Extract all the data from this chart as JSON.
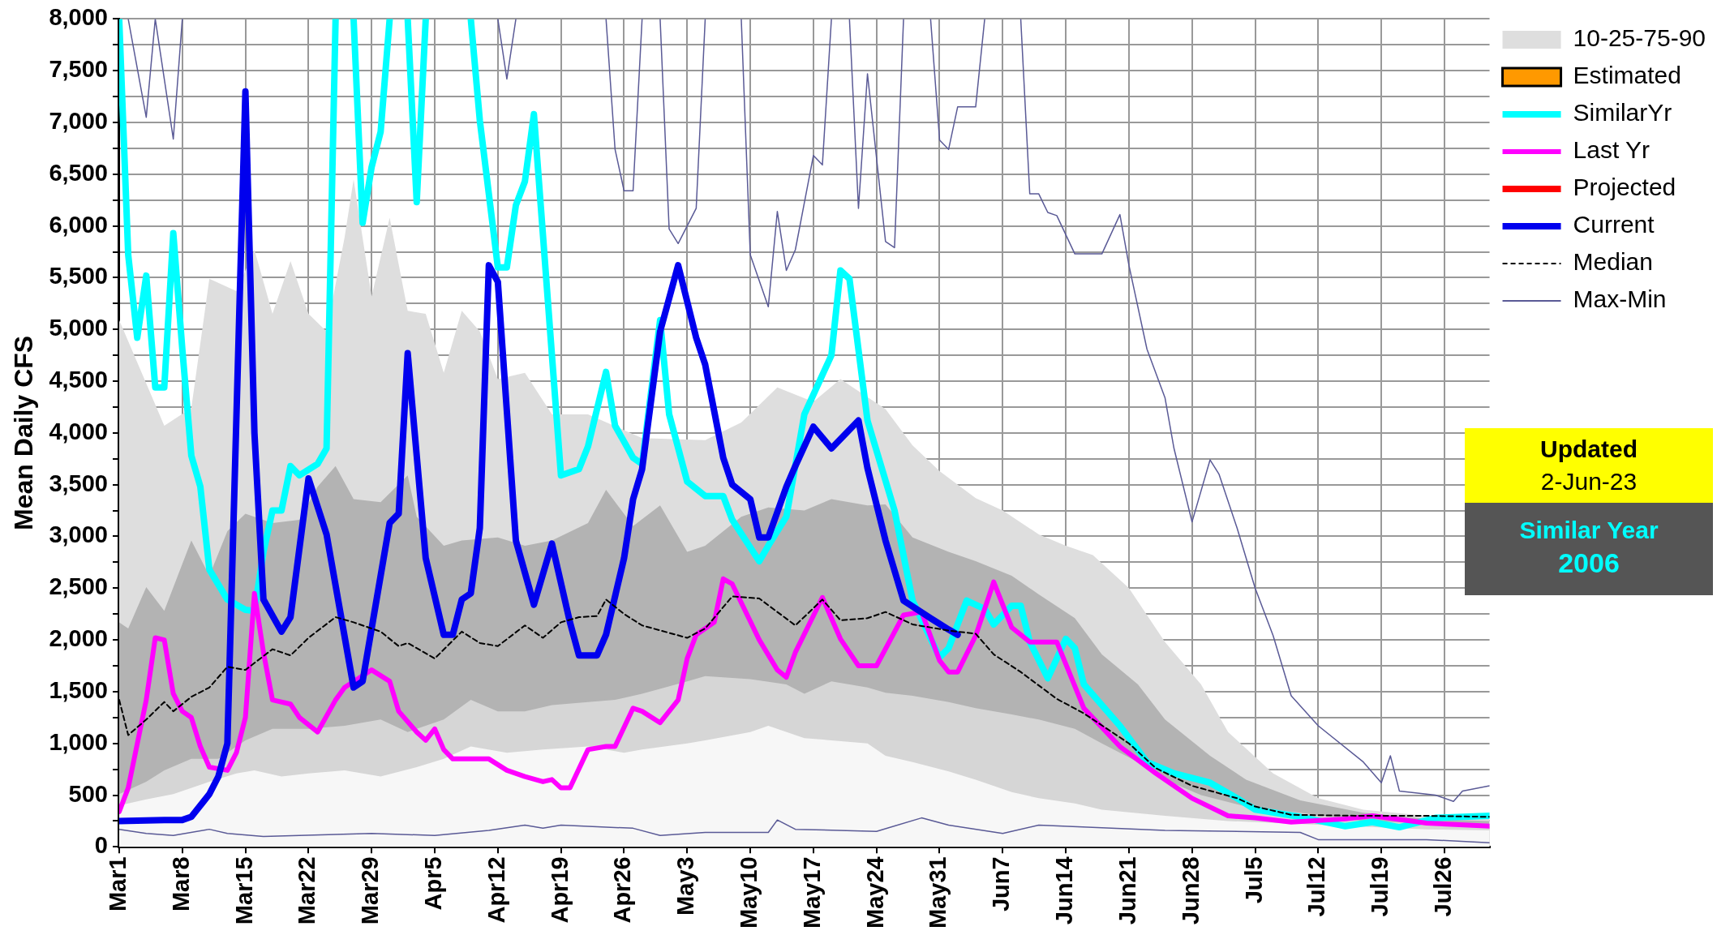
{
  "chart_data": {
    "type": "line",
    "ylabel": "Mean Daily CFS",
    "xlim": [
      "--03-01",
      "--07-31"
    ],
    "ylim": [
      0,
      8000
    ],
    "xticks": [
      {
        "value": "--03-01",
        "label": "Mar1"
      },
      {
        "value": "--03-08",
        "label": "Mar8"
      },
      {
        "value": "--03-15",
        "label": "Mar15"
      },
      {
        "value": "--03-22",
        "label": "Mar22"
      },
      {
        "value": "--03-29",
        "label": "Mar29"
      },
      {
        "value": "--04-05",
        "label": "Apr5"
      },
      {
        "value": "--04-12",
        "label": "Apr12"
      },
      {
        "value": "--04-19",
        "label": "Apr19"
      },
      {
        "value": "--04-26",
        "label": "Apr26"
      },
      {
        "value": "--05-03",
        "label": "May3"
      },
      {
        "value": "--05-10",
        "label": "May10"
      },
      {
        "value": "--05-17",
        "label": "May17"
      },
      {
        "value": "--05-24",
        "label": "May24"
      },
      {
        "value": "--05-31",
        "label": "May31"
      },
      {
        "value": "--06-07",
        "label": "Jun7"
      },
      {
        "value": "--06-14",
        "label": "Jun14"
      },
      {
        "value": "--06-21",
        "label": "Jun21"
      },
      {
        "value": "--06-28",
        "label": "Jun28"
      },
      {
        "value": "--07-05",
        "label": "Jul5"
      },
      {
        "value": "--07-12",
        "label": "Jul12"
      },
      {
        "value": "--07-19",
        "label": "Jul19"
      },
      {
        "value": "--07-26",
        "label": "Jul26"
      }
    ],
    "yticks": [
      0,
      {
        "value": 250,
        "label": null
      },
      500,
      {
        "value": 750,
        "label": null
      },
      {
        "value": 1000,
        "label": "1,000"
      },
      {
        "value": 1250,
        "label": null
      },
      {
        "value": 1500,
        "label": "1,500"
      },
      {
        "value": 1750,
        "label": null
      },
      {
        "value": 2000,
        "label": "2,000"
      },
      {
        "value": 2250,
        "label": null
      },
      {
        "value": 2500,
        "label": "2,500"
      },
      {
        "value": 2750,
        "label": null
      },
      {
        "value": 3000,
        "label": "3,000"
      },
      {
        "value": 3250,
        "label": null
      },
      {
        "value": 3500,
        "label": "3,500"
      },
      {
        "value": 3750,
        "label": null
      },
      {
        "value": 4000,
        "label": "4,000"
      },
      {
        "value": 4250,
        "label": null
      },
      {
        "value": 4500,
        "label": "4,500"
      },
      {
        "value": 4750,
        "label": null
      },
      {
        "value": 5000,
        "label": "5,000"
      },
      {
        "value": 5250,
        "label": null
      },
      {
        "value": 5500,
        "label": "5,500"
      },
      {
        "value": 5750,
        "label": null
      },
      {
        "value": 6000,
        "label": "6,000"
      },
      {
        "value": 6250,
        "label": null
      },
      {
        "value": 6500,
        "label": "6,500"
      },
      {
        "value": 6750,
        "label": null
      },
      {
        "value": 7000,
        "label": "7,000"
      },
      {
        "value": 7250,
        "label": null
      },
      {
        "value": 7500,
        "label": "7,500"
      },
      {
        "value": 7750,
        "label": null
      },
      {
        "value": 8000,
        "label": "8,000"
      }
    ],
    "grid": true,
    "legend": "right",
    "annotations": [
      "Updated\n2-Jun-23",
      "Similar Year\n2006"
    ],
    "series": [
      {
        "name": "10-25-75-90",
        "type": "area",
        "color": "#dedede",
        "x": [
          "--03-01",
          "--03-06",
          "--03-09",
          "--03-11",
          "--03-14",
          "--03-16",
          "--03-18",
          "--03-20",
          "--03-22",
          "--03-24",
          "--03-26",
          "--03-27",
          "--03-29",
          "--03-31",
          "--04-02",
          "--04-04",
          "--04-06",
          "--04-08",
          "--04-10",
          "--04-12",
          "--04-15",
          "--04-18",
          "--04-22",
          "--04-28",
          "--05-05",
          "--05-09",
          "--05-13",
          "--05-17",
          "--05-20",
          "--05-25",
          "--05-28",
          "--05-31",
          "--06-04",
          "--06-07",
          "--06-11",
          "--06-14",
          "--06-17",
          "--06-21",
          "--06-25",
          "--06-29",
          "--07-02",
          "--07-07",
          "--07-12",
          "--07-17",
          "--07-24",
          "--07-31"
        ],
        "values": [
          5090,
          4070,
          4240,
          5490,
          5370,
          5770,
          5150,
          5660,
          5150,
          4980,
          5890,
          6450,
          5320,
          6080,
          5180,
          5150,
          4580,
          5180,
          4980,
          4520,
          4580,
          4180,
          4180,
          3950,
          3930,
          4100,
          4440,
          4300,
          4520,
          4230,
          3880,
          3630,
          3370,
          3250,
          3020,
          2910,
          2820,
          2500,
          1980,
          1570,
          1110,
          710,
          470,
          360,
          300,
          270
        ]
      },
      {
        "type": "area",
        "color": "#b3b3b3",
        "x": [
          "--03-01",
          "--03-02",
          "--03-04",
          "--03-06",
          "--03-09",
          "--03-11",
          "--03-13",
          "--03-15",
          "--03-18",
          "--03-21",
          "--03-23",
          "--03-25",
          "--03-27",
          "--03-30",
          "--04-02",
          "--04-03",
          "--04-06",
          "--04-08",
          "--04-12",
          "--04-15",
          "--04-18",
          "--04-22",
          "--04-24",
          "--04-27",
          "--04-30",
          "--05-03",
          "--05-05",
          "--05-09",
          "--05-12",
          "--05-16",
          "--05-19",
          "--05-23",
          "--05-25",
          "--05-28",
          "--06-01",
          "--06-04",
          "--06-08",
          "--06-11",
          "--06-15",
          "--06-18",
          "--06-22",
          "--06-25",
          "--06-30",
          "--07-04",
          "--07-10",
          "--07-17",
          "--07-24",
          "--07-31"
        ],
        "values": [
          2170,
          2110,
          2510,
          2280,
          2960,
          2620,
          3050,
          3220,
          3130,
          3160,
          3480,
          3680,
          3360,
          3330,
          3590,
          3190,
          2910,
          2960,
          2990,
          2910,
          2960,
          3130,
          3450,
          3100,
          3300,
          2850,
          2910,
          3190,
          3280,
          3250,
          3360,
          3300,
          3310,
          2990,
          2850,
          2760,
          2620,
          2440,
          2210,
          1860,
          1570,
          1230,
          880,
          650,
          450,
          330,
          270,
          250
        ]
      },
      {
        "type": "area",
        "color": "#d6d6d6",
        "x": [
          "--03-01",
          "--03-04",
          "--03-06",
          "--03-09",
          "--03-12",
          "--03-15",
          "--03-18",
          "--03-22",
          "--03-26",
          "--03-30",
          "--04-02",
          "--04-06",
          "--04-09",
          "--04-12",
          "--04-15",
          "--04-18",
          "--04-22",
          "--04-25",
          "--04-28",
          "--05-03",
          "--05-05",
          "--05-10",
          "--05-14",
          "--05-16",
          "--05-19",
          "--05-23",
          "--05-25",
          "--05-28",
          "--06-01",
          "--06-04",
          "--06-08",
          "--06-11",
          "--06-15",
          "--06-18",
          "--06-22",
          "--06-25",
          "--06-29",
          "--07-04",
          "--07-10",
          "--07-17",
          "--07-31"
        ],
        "values": [
          510,
          630,
          740,
          850,
          850,
          1030,
          1140,
          1140,
          1170,
          1230,
          1110,
          1230,
          1420,
          1310,
          1310,
          1370,
          1400,
          1420,
          1480,
          1600,
          1650,
          1620,
          1570,
          1480,
          1600,
          1540,
          1490,
          1460,
          1400,
          1340,
          1280,
          1230,
          1140,
          1000,
          820,
          650,
          500,
          390,
          330,
          250,
          210
        ]
      },
      {
        "type": "area",
        "color": "#f7f7f7",
        "x": [
          "--03-01",
          "--03-04",
          "--03-07",
          "--03-11",
          "--03-14",
          "--03-16",
          "--03-19",
          "--03-22",
          "--03-26",
          "--03-30",
          "--04-03",
          "--04-06",
          "--04-09",
          "--04-13",
          "--04-17",
          "--04-22",
          "--04-26",
          "--04-28",
          "--05-03",
          "--05-05",
          "--05-10",
          "--05-12",
          "--05-16",
          "--05-19",
          "--05-23",
          "--05-25",
          "--05-28",
          "--06-01",
          "--06-04",
          "--06-08",
          "--06-11",
          "--06-15",
          "--06-18",
          "--06-25",
          "--07-02",
          "--07-13",
          "--07-24",
          "--07-31"
        ],
        "values": [
          400,
          460,
          510,
          630,
          710,
          740,
          680,
          710,
          740,
          680,
          770,
          850,
          970,
          910,
          940,
          970,
          910,
          940,
          1000,
          1030,
          1110,
          1170,
          1050,
          1030,
          1000,
          880,
          820,
          730,
          650,
          530,
          470,
          420,
          360,
          300,
          250,
          210,
          170,
          160
        ]
      },
      {
        "name": "Estimated",
        "type": "area",
        "color": "#ff9900"
      },
      {
        "name": "SimilarYr",
        "color": "#00ffff",
        "x": [
          "--03-01",
          "--03-02",
          "--03-03",
          "--03-04",
          "--03-05",
          "--03-06",
          "--03-07",
          "--03-08",
          "--03-09",
          "--03-10",
          "--03-11",
          "--03-13",
          "--03-15",
          "--03-16",
          "--03-17",
          "--03-18",
          "--03-19",
          "--03-20",
          "--03-21",
          "--03-23",
          "--03-24",
          "--03-25",
          "--03-26",
          "--03-27",
          "--03-28",
          "--03-29",
          "--03-30",
          "--03-31",
          "--04-01",
          "--04-02",
          "--04-03",
          "--04-04",
          "--04-05",
          "--04-09",
          "--04-10",
          "--04-12",
          "--04-13",
          "--04-14",
          "--04-15",
          "--04-16",
          "--04-18",
          "--04-19",
          "--04-21",
          "--04-22",
          "--04-24",
          "--04-25",
          "--04-27",
          "--04-28",
          "--04-30",
          "--05-01",
          "--05-03",
          "--05-05",
          "--05-07",
          "--05-08",
          "--05-11",
          "--05-12",
          "--05-14",
          "--05-16",
          "--05-19",
          "--05-20",
          "--05-21",
          "--05-23",
          "--05-26",
          "--05-28",
          "--05-31",
          "--06-01",
          "--06-03",
          "--06-05",
          "--06-06",
          "--06-08",
          "--06-09",
          "--06-10",
          "--06-12",
          "--06-14",
          "--06-15",
          "--06-16",
          "--06-20",
          "--06-23",
          "--06-26",
          "--06-30",
          "--07-03",
          "--07-05",
          "--07-10",
          "--07-15",
          "--07-18",
          "--07-21",
          "--07-25",
          "--07-31"
        ],
        "values": [
          8000,
          5720,
          4920,
          5520,
          4440,
          4440,
          5930,
          4810,
          3780,
          3480,
          2680,
          2390,
          2290,
          2280,
          2850,
          3250,
          3250,
          3680,
          3590,
          3700,
          3850,
          8000,
          null,
          8000,
          6030,
          6570,
          6910,
          8000,
          null,
          8000,
          6230,
          8000,
          null,
          8000,
          7020,
          5600,
          5600,
          6200,
          6430,
          7080,
          4750,
          3590,
          3650,
          3870,
          4590,
          4070,
          3760,
          3700,
          5090,
          4180,
          3530,
          3390,
          3390,
          3160,
          2760,
          2910,
          3190,
          4180,
          4750,
          5570,
          5490,
          4120,
          3250,
          2380,
          1830,
          1920,
          2380,
          2300,
          2150,
          2330,
          2330,
          1980,
          1630,
          2010,
          1920,
          1570,
          1170,
          820,
          710,
          620,
          470,
          360,
          290,
          200,
          240,
          190,
          280,
          300
        ]
      },
      {
        "name": "Last Yr",
        "color": "#ff00ff",
        "x": [
          "--03-01",
          "--03-02",
          "--03-04",
          "--03-05",
          "--03-06",
          "--03-07",
          "--03-08",
          "--03-09",
          "--03-10",
          "--03-11",
          "--03-13",
          "--03-14",
          "--03-15",
          "--03-16",
          "--03-17",
          "--03-18",
          "--03-20",
          "--03-21",
          "--03-23",
          "--03-25",
          "--03-26",
          "--03-29",
          "--03-31",
          "--04-01",
          "--04-03",
          "--04-04",
          "--04-05",
          "--04-06",
          "--04-07",
          "--04-11",
          "--04-13",
          "--04-15",
          "--04-17",
          "--04-18",
          "--04-19",
          "--04-20",
          "--04-22",
          "--04-24",
          "--04-25",
          "--04-27",
          "--04-28",
          "--04-30",
          "--05-01",
          "--05-02",
          "--05-03",
          "--05-04",
          "--05-06",
          "--05-07",
          "--05-08",
          "--05-11",
          "--05-13",
          "--05-14",
          "--05-15",
          "--05-18",
          "--05-20",
          "--05-22",
          "--05-24",
          "--05-27",
          "--05-29",
          "--05-31",
          "--06-01",
          "--06-02",
          "--06-04",
          "--06-06",
          "--06-08",
          "--06-10",
          "--06-13",
          "--06-16",
          "--06-20",
          "--06-24",
          "--06-28",
          "--07-02",
          "--07-05",
          "--07-09",
          "--07-15",
          "--07-18",
          "--07-24",
          "--07-31"
        ],
        "values": [
          340,
          570,
          1420,
          2020,
          2000,
          1480,
          1310,
          1250,
          970,
          770,
          740,
          910,
          1250,
          2450,
          1880,
          1420,
          1380,
          1250,
          1110,
          1420,
          1540,
          1710,
          1600,
          1310,
          1110,
          1030,
          1140,
          940,
          850,
          850,
          740,
          680,
          630,
          650,
          570,
          570,
          940,
          970,
          970,
          1340,
          1310,
          1200,
          1310,
          1420,
          1820,
          2050,
          2170,
          2590,
          2540,
          2000,
          1710,
          1640,
          1880,
          2410,
          2010,
          1750,
          1750,
          2240,
          2270,
          1800,
          1690,
          1690,
          2040,
          2560,
          2120,
          1980,
          1980,
          1340,
          970,
          710,
          470,
          300,
          280,
          240,
          270,
          300,
          230,
          200
        ]
      },
      {
        "name": "Projected",
        "color": "#ff0000"
      },
      {
        "name": "Current",
        "color": "#0000ee",
        "x": [
          "--03-01",
          "--03-06",
          "--03-08",
          "--03-09",
          "--03-11",
          "--03-12",
          "--03-13",
          "--03-15",
          "--03-16",
          "--03-17",
          "--03-19",
          "--03-20",
          "--03-22",
          "--03-24",
          "--03-27",
          "--03-28",
          "--03-31",
          "--04-01",
          "--04-02",
          "--04-04",
          "--04-06",
          "--04-07",
          "--04-08",
          "--04-09",
          "--04-10",
          "--04-11",
          "--04-12",
          "--04-14",
          "--04-16",
          "--04-18",
          "--04-20",
          "--04-21",
          "--04-23",
          "--04-24",
          "--04-26",
          "--04-27",
          "--04-28",
          "--04-30",
          "--05-02",
          "--05-04",
          "--05-05",
          "--05-07",
          "--05-08",
          "--05-10",
          "--05-11",
          "--05-12",
          "--05-14",
          "--05-15",
          "--05-17",
          "--05-19",
          "--05-22",
          "--05-23",
          "--05-25",
          "--05-27",
          "--05-30",
          "--06-01",
          "--06-02"
        ],
        "values": [
          250,
          260,
          260,
          290,
          510,
          680,
          1000,
          7300,
          4000,
          2390,
          2080,
          2220,
          3560,
          3020,
          1540,
          1600,
          3130,
          3220,
          4770,
          2790,
          2050,
          2050,
          2390,
          2450,
          3080,
          5620,
          5460,
          2960,
          2340,
          2930,
          2170,
          1850,
          1850,
          2050,
          2790,
          3360,
          3650,
          4980,
          5620,
          4920,
          4660,
          3760,
          3500,
          3360,
          2990,
          2990,
          3480,
          3680,
          4060,
          3850,
          4120,
          3660,
          2960,
          2380,
          2210,
          2100,
          2050
        ]
      },
      {
        "name": "Median",
        "line_style": "dashed",
        "color": "#000000",
        "x": [
          "--03-01",
          "--03-02",
          "--03-04",
          "--03-06",
          "--03-07",
          "--03-09",
          "--03-11",
          "--03-13",
          "--03-15",
          "--03-18",
          "--03-20",
          "--03-22",
          "--03-25",
          "--03-27",
          "--03-30",
          "--04-01",
          "--04-02",
          "--04-05",
          "--04-08",
          "--04-10",
          "--04-12",
          "--04-15",
          "--04-17",
          "--04-19",
          "--04-21",
          "--04-23",
          "--04-24",
          "--04-26",
          "--04-28",
          "--05-03",
          "--05-05",
          "--05-08",
          "--05-11",
          "--05-15",
          "--05-18",
          "--05-20",
          "--05-23",
          "--05-25",
          "--05-28",
          "--06-01",
          "--06-04",
          "--06-06",
          "--06-09",
          "--06-13",
          "--06-16",
          "--06-21",
          "--06-24",
          "--06-28",
          "--07-03",
          "--07-05",
          "--07-09",
          "--07-17",
          "--07-24",
          "--07-31"
        ],
        "values": [
          1420,
          1080,
          1230,
          1400,
          1310,
          1450,
          1540,
          1740,
          1710,
          1910,
          1850,
          2020,
          2220,
          2170,
          2080,
          1940,
          1970,
          1820,
          2080,
          1970,
          1940,
          2140,
          2020,
          2170,
          2220,
          2230,
          2390,
          2250,
          2140,
          2020,
          2110,
          2420,
          2400,
          2140,
          2390,
          2190,
          2210,
          2270,
          2150,
          2090,
          2060,
          1860,
          1690,
          1430,
          1290,
          1000,
          760,
          590,
          470,
          390,
          310,
          300,
          300,
          290
        ]
      },
      {
        "name": "Max-Min",
        "color": "#5a5a96",
        "x": [
          "--03-02",
          "--03-04",
          "--03-05",
          "--03-07",
          "--03-08",
          "--03-09",
          "--04-12",
          "--04-13",
          "--04-14",
          "--04-15",
          "--04-24",
          "--04-25",
          "--04-26",
          "--04-27",
          "--04-28",
          "--04-29",
          "--04-30",
          "--05-01",
          "--05-02",
          "--05-04",
          "--05-05",
          "--05-06",
          "--05-09",
          "--05-10",
          "--05-12",
          "--05-13",
          "--05-14",
          "--05-15",
          "--05-17",
          "--05-18",
          "--05-19",
          "--05-20",
          "--05-21",
          "--05-22",
          "--05-23",
          "--05-25",
          "--05-26",
          "--05-27",
          "--05-28",
          "--05-30",
          "--05-31",
          "--06-01",
          "--06-02",
          "--06-04",
          "--06-05",
          "--06-06",
          "--06-09",
          "--06-10",
          "--06-11",
          "--06-12",
          "--06-13",
          "--06-15",
          "--06-18",
          "--06-20",
          "--06-21",
          "--06-23",
          "--06-25",
          "--06-26",
          "--06-28",
          "--06-30",
          "--07-01",
          "--07-03",
          "--07-05",
          "--07-07",
          "--07-09",
          "--07-12",
          "--07-17",
          "--07-19",
          "--07-20",
          "--07-21",
          "--07-25",
          "--07-27",
          "--07-28",
          "--07-31"
        ],
        "values": [
          8000,
          7050,
          8000,
          6840,
          8000,
          null,
          8000,
          7420,
          8000,
          null,
          8000,
          6740,
          6340,
          6340,
          8000,
          null,
          8000,
          5970,
          5830,
          6170,
          8000,
          null,
          8000,
          5720,
          5220,
          6140,
          5570,
          5770,
          6680,
          6590,
          8000,
          null,
          8000,
          6170,
          7470,
          5850,
          5790,
          8000,
          null,
          8000,
          6830,
          6740,
          7150,
          7150,
          8000,
          null,
          8000,
          6310,
          6310,
          6130,
          6100,
          5730,
          5730,
          6110,
          5620,
          4810,
          4340,
          3850,
          3140,
          3740,
          3600,
          3080,
          2500,
          2040,
          1460,
          1170,
          820,
          620,
          880,
          540,
          500,
          440,
          540,
          590
        ]
      },
      {
        "color": "#5a5a96",
        "x": [
          "--03-01",
          "--03-04",
          "--03-07",
          "--03-11",
          "--03-13",
          "--03-17",
          "--03-29",
          "--04-05",
          "--04-11",
          "--04-15",
          "--04-17",
          "--04-19",
          "--04-27",
          "--04-30",
          "--05-05",
          "--05-12",
          "--05-13",
          "--05-15",
          "--05-24",
          "--05-29",
          "--06-01",
          "--06-07",
          "--06-11",
          "--06-25",
          "--07-10",
          "--07-12",
          "--07-24",
          "--07-31"
        ],
        "values": [
          170,
          130,
          110,
          170,
          130,
          100,
          130,
          110,
          160,
          210,
          180,
          210,
          180,
          110,
          140,
          140,
          260,
          170,
          150,
          280,
          210,
          130,
          210,
          160,
          140,
          70,
          70,
          40
        ]
      }
    ]
  }
}
